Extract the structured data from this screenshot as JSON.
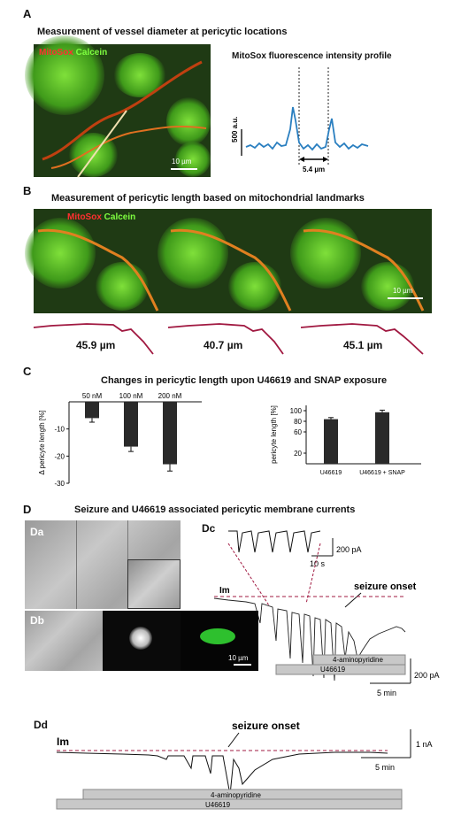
{
  "panelA": {
    "label": "A",
    "title": "Measurement of vessel diameter at pericytic locations",
    "legend_mitosox": "MitoSox",
    "legend_calcein": "Calcein",
    "scale": "10 µm",
    "profile_title": "MitoSox fluorescence intensity profile",
    "profile_ylabel": "500 a.u.",
    "profile_dist": "5.4 µm"
  },
  "panelB": {
    "label": "B",
    "title": "Measurement of pericytic length based on mitochondrial landmarks",
    "legend_mitosox": "MitoSox",
    "legend_calcein": "Calcein",
    "scale": "10 µm",
    "lengths": [
      "45.9 µm",
      "40.7 µm",
      "45.1 µm"
    ]
  },
  "panelC": {
    "label": "C",
    "title": "Changes in pericytic length upon U46619 and SNAP exposure"
  },
  "chart_data": [
    {
      "type": "bar",
      "title": "",
      "categories": [
        "50 nM",
        "100 nM",
        "200 nM"
      ],
      "values": [
        -6,
        -16.5,
        -23
      ],
      "errors": [
        1.5,
        1.8,
        2.5
      ],
      "ylabel": "Δ pericyte length [%]",
      "yticks": [
        "-10",
        "-20",
        "-30"
      ],
      "ylim": [
        -30,
        0
      ],
      "color": "#2a2a2a"
    },
    {
      "type": "bar",
      "title": "",
      "categories": [
        "U46619",
        "U46619 + SNAP"
      ],
      "values": [
        84,
        97
      ],
      "errors": [
        3,
        4
      ],
      "ylabel": "pericyte length [%]",
      "yticks": [
        "20",
        "60",
        "80",
        "100"
      ],
      "ylim": [
        0,
        110
      ],
      "color": "#2a2a2a"
    }
  ],
  "panelD": {
    "label": "D",
    "title": "Seizure and U46619 associated pericytic membrane currents",
    "Da": "Da",
    "Db": "Db",
    "Dc": "Dc",
    "Dd": "Dd",
    "db_scale": "10 µm",
    "dc_inset_scale_y": "200 pA",
    "dc_inset_scale_x": "10 s",
    "dc_im": "Im",
    "dc_seizure": "seizure onset",
    "dc_bar1": "4-aminopyridine",
    "dc_bar2": "U46619",
    "dc_scale_y": "200 pA",
    "dc_scale_x": "5 min",
    "dd_im": "Im",
    "dd_seizure": "seizure onset",
    "dd_scale_y": "1 nA",
    "dd_scale_x": "5 min",
    "dd_bar1": "4-aminopyridine",
    "dd_bar2": "U46619"
  }
}
